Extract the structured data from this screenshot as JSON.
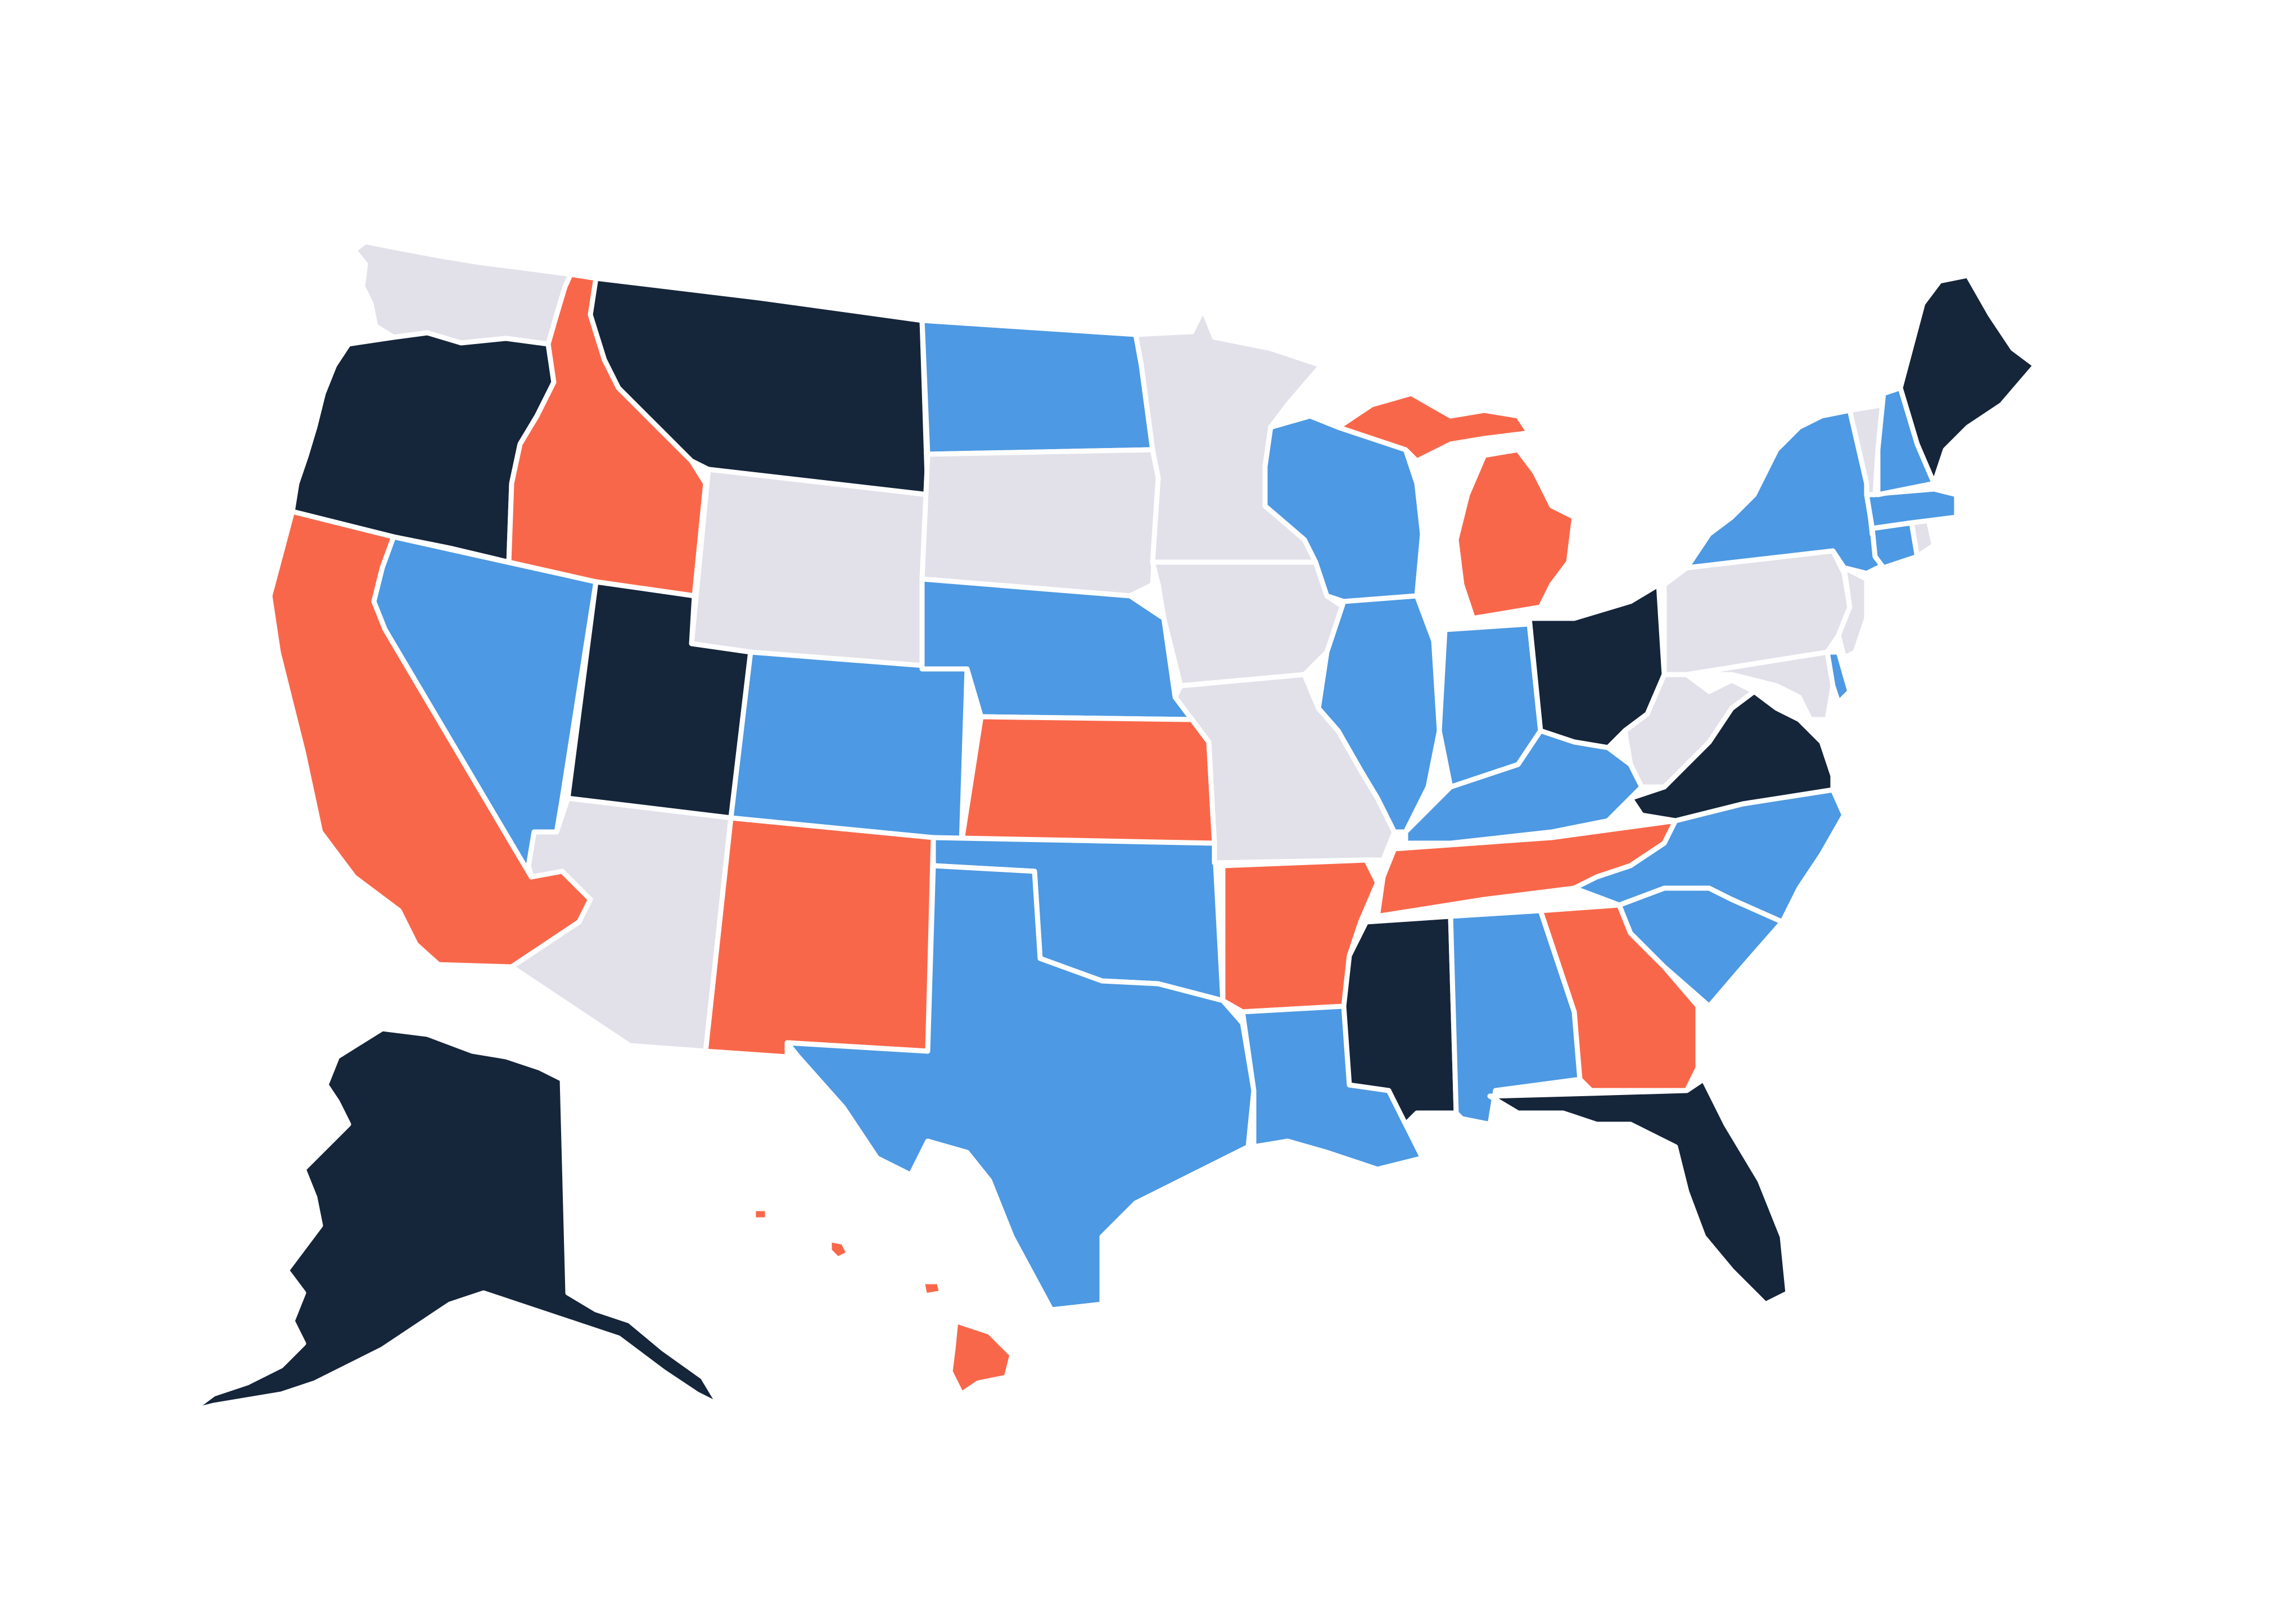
{
  "map": {
    "colors": {
      "dark": "#15253a",
      "orange": "#f9674a",
      "blue": "#4d99e3",
      "gray": "#e2e1ea",
      "border": "#ffffff",
      "background": "#ffffff"
    },
    "states": [
      {
        "id": "WA",
        "name": "washington",
        "category": "gray"
      },
      {
        "id": "OR",
        "name": "oregon",
        "category": "dark"
      },
      {
        "id": "CA",
        "name": "california",
        "category": "orange"
      },
      {
        "id": "NV",
        "name": "nevada",
        "category": "blue"
      },
      {
        "id": "ID",
        "name": "idaho",
        "category": "orange"
      },
      {
        "id": "MT",
        "name": "montana",
        "category": "dark"
      },
      {
        "id": "WY",
        "name": "wyoming",
        "category": "gray"
      },
      {
        "id": "UT",
        "name": "utah",
        "category": "dark"
      },
      {
        "id": "AZ",
        "name": "arizona",
        "category": "gray"
      },
      {
        "id": "CO",
        "name": "colorado",
        "category": "blue"
      },
      {
        "id": "NM",
        "name": "new-mexico",
        "category": "orange"
      },
      {
        "id": "ND",
        "name": "north-dakota",
        "category": "blue"
      },
      {
        "id": "SD",
        "name": "south-dakota",
        "category": "gray"
      },
      {
        "id": "NE",
        "name": "nebraska",
        "category": "blue"
      },
      {
        "id": "KS",
        "name": "kansas",
        "category": "orange"
      },
      {
        "id": "OK",
        "name": "oklahoma",
        "category": "blue"
      },
      {
        "id": "TX",
        "name": "texas",
        "category": "blue"
      },
      {
        "id": "MN",
        "name": "minnesota",
        "category": "gray"
      },
      {
        "id": "IA",
        "name": "iowa",
        "category": "gray"
      },
      {
        "id": "MO",
        "name": "missouri",
        "category": "gray"
      },
      {
        "id": "AR",
        "name": "arkansas",
        "category": "orange"
      },
      {
        "id": "LA",
        "name": "louisiana",
        "category": "blue"
      },
      {
        "id": "WI",
        "name": "wisconsin",
        "category": "blue"
      },
      {
        "id": "IL",
        "name": "illinois",
        "category": "blue"
      },
      {
        "id": "MI-UP",
        "name": "michigan-upper",
        "category": "orange"
      },
      {
        "id": "MI",
        "name": "michigan",
        "category": "orange"
      },
      {
        "id": "IN",
        "name": "indiana",
        "category": "blue"
      },
      {
        "id": "OH",
        "name": "ohio",
        "category": "dark"
      },
      {
        "id": "KY",
        "name": "kentucky",
        "category": "blue"
      },
      {
        "id": "TN",
        "name": "tennessee",
        "category": "orange"
      },
      {
        "id": "MS",
        "name": "mississippi",
        "category": "dark"
      },
      {
        "id": "AL",
        "name": "alabama",
        "category": "blue"
      },
      {
        "id": "GA",
        "name": "georgia",
        "category": "orange"
      },
      {
        "id": "FL",
        "name": "florida",
        "category": "dark"
      },
      {
        "id": "SC",
        "name": "south-carolina",
        "category": "blue"
      },
      {
        "id": "NC",
        "name": "north-carolina",
        "category": "blue"
      },
      {
        "id": "VA",
        "name": "virginia",
        "category": "dark"
      },
      {
        "id": "WV",
        "name": "west-virginia",
        "category": "gray"
      },
      {
        "id": "MD",
        "name": "maryland",
        "category": "gray"
      },
      {
        "id": "DE",
        "name": "delaware",
        "category": "blue"
      },
      {
        "id": "PA",
        "name": "pennsylvania",
        "category": "gray"
      },
      {
        "id": "NJ",
        "name": "new-jersey",
        "category": "gray"
      },
      {
        "id": "NY",
        "name": "new-york",
        "category": "blue"
      },
      {
        "id": "CT",
        "name": "connecticut",
        "category": "blue"
      },
      {
        "id": "RI",
        "name": "rhode-island",
        "category": "gray"
      },
      {
        "id": "MA",
        "name": "massachusetts",
        "category": "blue"
      },
      {
        "id": "VT",
        "name": "vermont",
        "category": "gray"
      },
      {
        "id": "NH",
        "name": "new-hampshire",
        "category": "blue"
      },
      {
        "id": "ME",
        "name": "maine",
        "category": "dark"
      },
      {
        "id": "AK",
        "name": "alaska",
        "category": "dark"
      },
      {
        "id": "HI",
        "name": "hawaii",
        "category": "orange"
      }
    ]
  }
}
